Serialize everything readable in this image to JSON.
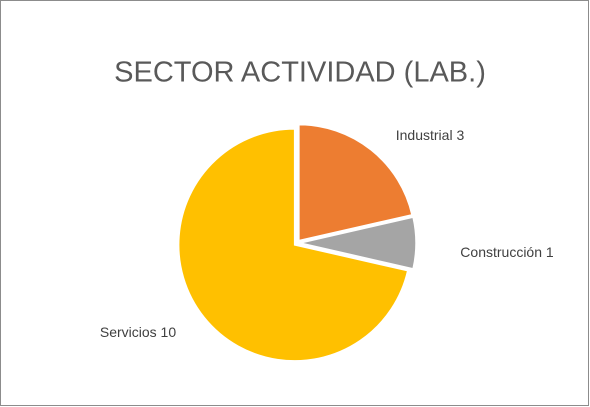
{
  "chart_data": {
    "type": "pie",
    "title": "SECTOR ACTIVIDAD (LAB.)",
    "categories": [
      "Industrial",
      "Construcción",
      "Servicios"
    ],
    "values": [
      3,
      1,
      10
    ],
    "colors": [
      "#ed7d31",
      "#a5a5a5",
      "#ffc000"
    ]
  }
}
